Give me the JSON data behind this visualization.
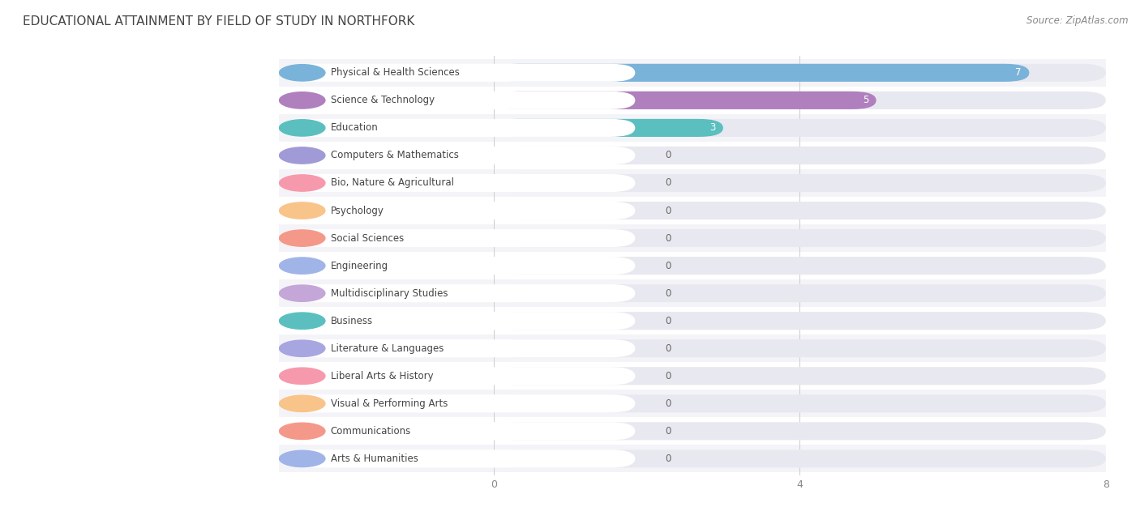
{
  "title": "Educational Attainment by Field of Study in Northfork",
  "source": "Source: ZipAtlas.com",
  "categories": [
    "Physical & Health Sciences",
    "Science & Technology",
    "Education",
    "Computers & Mathematics",
    "Bio, Nature & Agricultural",
    "Psychology",
    "Social Sciences",
    "Engineering",
    "Multidisciplinary Studies",
    "Business",
    "Literature & Languages",
    "Liberal Arts & History",
    "Visual & Performing Arts",
    "Communications",
    "Arts & Humanities"
  ],
  "values": [
    7,
    5,
    3,
    0,
    0,
    0,
    0,
    0,
    0,
    0,
    0,
    0,
    0,
    0,
    0
  ],
  "bar_colors": [
    "#7ab3d9",
    "#b07fbe",
    "#5bbfbf",
    "#a09bd6",
    "#f799ac",
    "#f8c48a",
    "#f4998a",
    "#a0b4e8",
    "#c4a6d8",
    "#5bbfbf",
    "#a8a6e0",
    "#f799ac",
    "#f8c48a",
    "#f4998a",
    "#a0b4e8"
  ],
  "label_pill_color": "#ffffff",
  "bg_pill_color": "#e8e8f0",
  "xlim": [
    0,
    8
  ],
  "xticks": [
    0,
    4,
    8
  ],
  "row_colors": [
    "#f4f4f8",
    "#ffffff"
  ],
  "title_fontsize": 11,
  "label_fontsize": 8.5,
  "value_fontsize": 8.5,
  "bar_height": 0.65
}
